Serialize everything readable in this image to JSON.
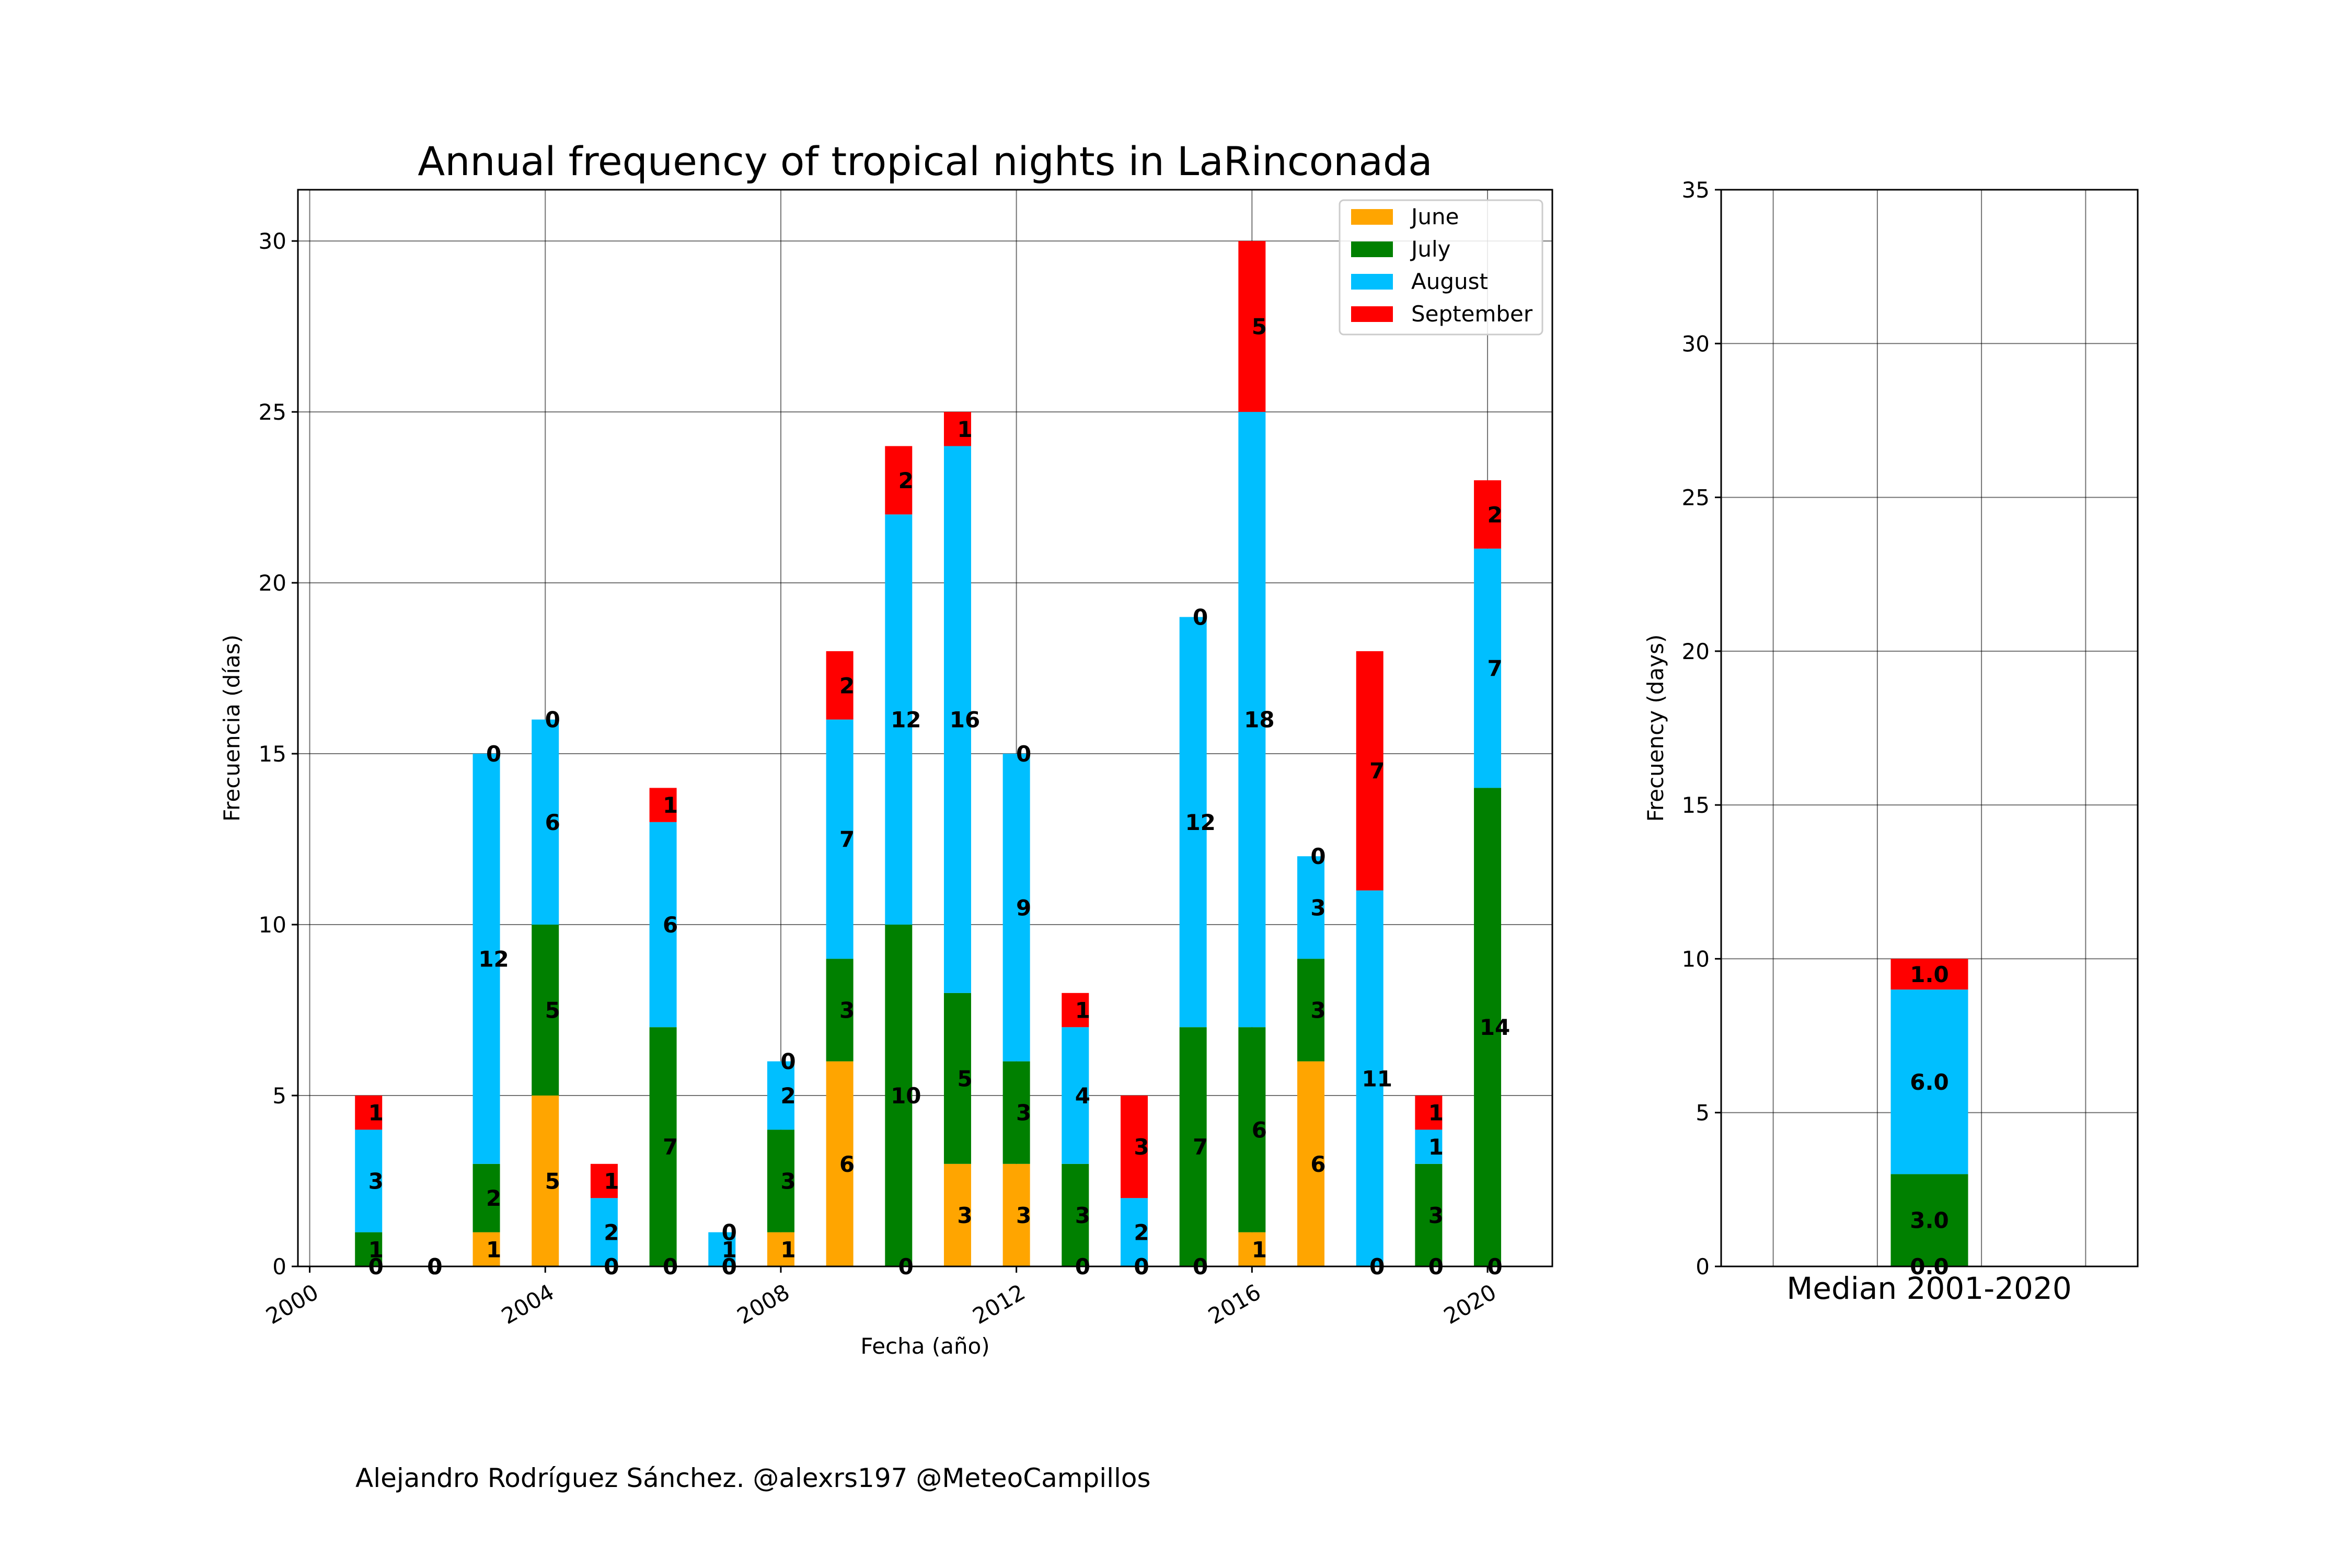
{
  "colors": {
    "June": "#ffa500",
    "July": "#008000",
    "August": "#00bfff",
    "September": "#ff0000"
  },
  "chart_data": [
    {
      "type": "bar",
      "stacked": true,
      "title": "Annual frequency of tropical nights in LaRinconada",
      "xlabel": "Fecha (año)",
      "ylabel": "Frecuencia (días)",
      "x": [
        2001,
        2002,
        2003,
        2004,
        2005,
        2006,
        2007,
        2008,
        2009,
        2010,
        2011,
        2012,
        2013,
        2014,
        2015,
        2016,
        2017,
        2018,
        2019,
        2020
      ],
      "series": [
        {
          "name": "June",
          "values": [
            0,
            0,
            1,
            5,
            0,
            0,
            0,
            1,
            6,
            0,
            3,
            3,
            0,
            0,
            0,
            1,
            6,
            0,
            0,
            0
          ]
        },
        {
          "name": "July",
          "values": [
            1,
            0,
            2,
            5,
            0,
            7,
            0,
            3,
            3,
            10,
            5,
            3,
            3,
            0,
            7,
            6,
            3,
            0,
            3,
            14
          ]
        },
        {
          "name": "August",
          "values": [
            3,
            0,
            12,
            6,
            2,
            6,
            1,
            2,
            7,
            12,
            16,
            9,
            4,
            2,
            12,
            18,
            3,
            11,
            1,
            7
          ]
        },
        {
          "name": "September",
          "values": [
            1,
            0,
            0,
            0,
            1,
            1,
            0,
            0,
            2,
            2,
            1,
            0,
            1,
            3,
            0,
            5,
            0,
            7,
            1,
            2
          ]
        }
      ],
      "xlim": [
        1999.8,
        2021.1
      ],
      "ylim": [
        0,
        31.5
      ],
      "xticks": [
        2000,
        2004,
        2008,
        2012,
        2016,
        2020
      ],
      "yticks": [
        0,
        5,
        10,
        15,
        20,
        25,
        30
      ],
      "grid": true,
      "legend": "top-right"
    },
    {
      "type": "bar",
      "stacked": true,
      "xlabel": "Median 2001-2020",
      "ylabel": "Frecuency (days)",
      "series": [
        {
          "name": "June",
          "values": [
            0.0
          ]
        },
        {
          "name": "July",
          "values": [
            3.0
          ]
        },
        {
          "name": "August",
          "values": [
            6.0
          ]
        },
        {
          "name": "September",
          "values": [
            1.0
          ]
        }
      ],
      "ylim": [
        0,
        35
      ],
      "yticks": [
        0,
        5,
        10,
        15,
        20,
        25,
        30,
        35
      ],
      "grid": true
    }
  ],
  "credit": "Alejandro Rodríguez Sánchez. @alexrs197 @MeteoCampillos"
}
